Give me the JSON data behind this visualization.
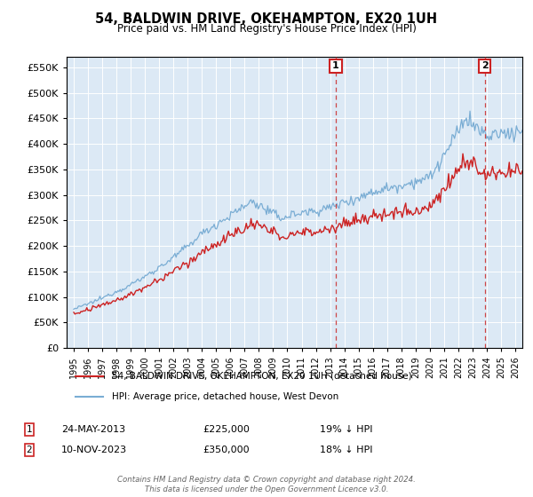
{
  "title": "54, BALDWIN DRIVE, OKEHAMPTON, EX20 1UH",
  "subtitle": "Price paid vs. HM Land Registry's House Price Index (HPI)",
  "legend_line1": "54, BALDWIN DRIVE, OKEHAMPTON, EX20 1UH (detached house)",
  "legend_line2": "HPI: Average price, detached house, West Devon",
  "annotation1_date": "24-MAY-2013",
  "annotation1_price": "£225,000",
  "annotation1_hpi": "19% ↓ HPI",
  "annotation1_year": 2013.4,
  "annotation1_value": 225000,
  "annotation2_date": "10-NOV-2023",
  "annotation2_price": "£350,000",
  "annotation2_hpi": "18% ↓ HPI",
  "annotation2_year": 2023.85,
  "annotation2_value": 350000,
  "hpi_color": "#7aadd4",
  "price_color": "#cc2222",
  "vline_color": "#cc3333",
  "annotation_box_color": "#cc2222",
  "ylim": [
    0,
    570000
  ],
  "yticks": [
    0,
    50000,
    100000,
    150000,
    200000,
    250000,
    300000,
    350000,
    400000,
    450000,
    500000,
    550000
  ],
  "xlim": [
    1994.5,
    2026.5
  ],
  "footer": "Contains HM Land Registry data © Crown copyright and database right 2024.\nThis data is licensed under the Open Government Licence v3.0.",
  "background_color": "#dce9f5"
}
